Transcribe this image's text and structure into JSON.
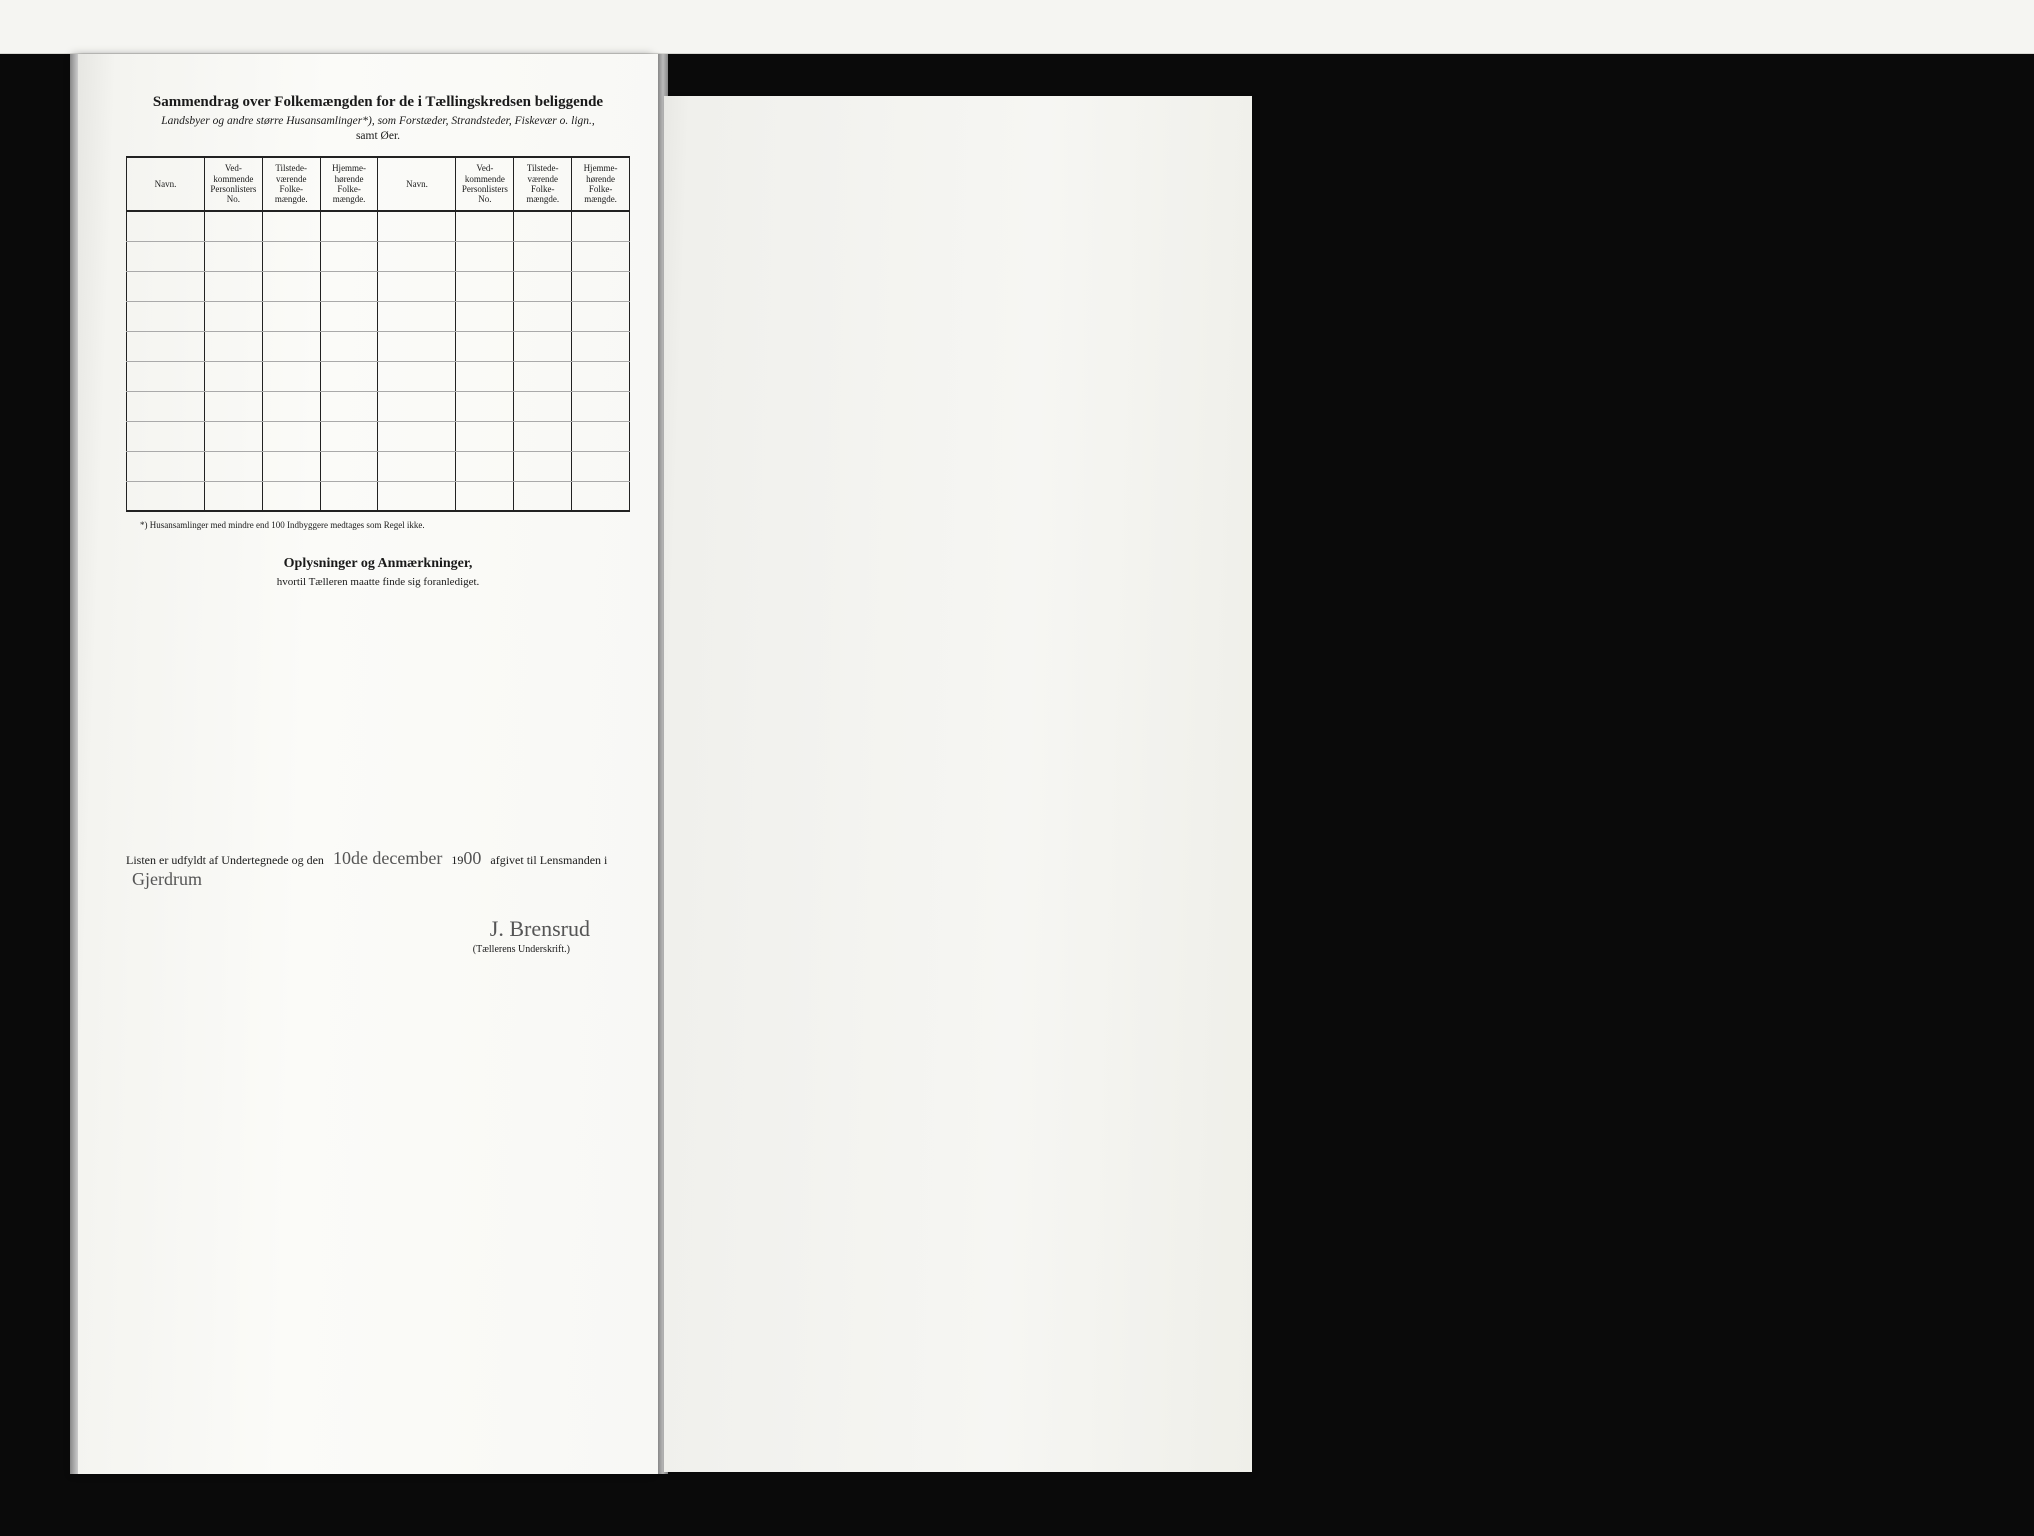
{
  "document": {
    "title_main": "Sammendrag over Folkemængden for de i Tællingskredsen beliggende",
    "title_sub": "Landsbyer og andre større Husansamlinger*), som Forstæder, Strandsteder, Fiskevær o. lign.,",
    "title_sub2": "samt Øer.",
    "footnote": "*) Husansamlinger med mindre end 100 Indbyggere medtages som Regel ikke.",
    "section2_title": "Oplysninger og Anmærkninger,",
    "section2_sub": "hvortil Tælleren maatte finde sig foranlediget.",
    "listen_prefix": "Listen er udfyldt af Undertegnede og den",
    "listen_date_hand": "10de december",
    "listen_year_prefix": "19",
    "listen_year_hand": "00",
    "listen_mid": "afgivet til Lensmanden i",
    "listen_place_hand": "Gjerdrum",
    "signature": "J. Brensrud",
    "signature_label": "(Tællerens Underskrift.)"
  },
  "table": {
    "columns": {
      "navn": "Navn.",
      "ved": "Ved-\nkommende\nPersonlisters\nNo.",
      "til": "Tilstede-\nværende\nFolke-\nmængde.",
      "hjem": "Hjemme-\nhørende\nFolke-\nmængde."
    },
    "row_count": 10
  },
  "style": {
    "page_bg": "#fbfbf8",
    "right_page_bg": "#f6f6f3",
    "body_bg": "#0a0a0a",
    "text_color": "#1a1a1a",
    "border_color": "#222222",
    "hand_color": "#555555",
    "title_fontsize_pt": 15,
    "header_fontsize_pt": 9,
    "body_fontsize_pt": 12
  }
}
